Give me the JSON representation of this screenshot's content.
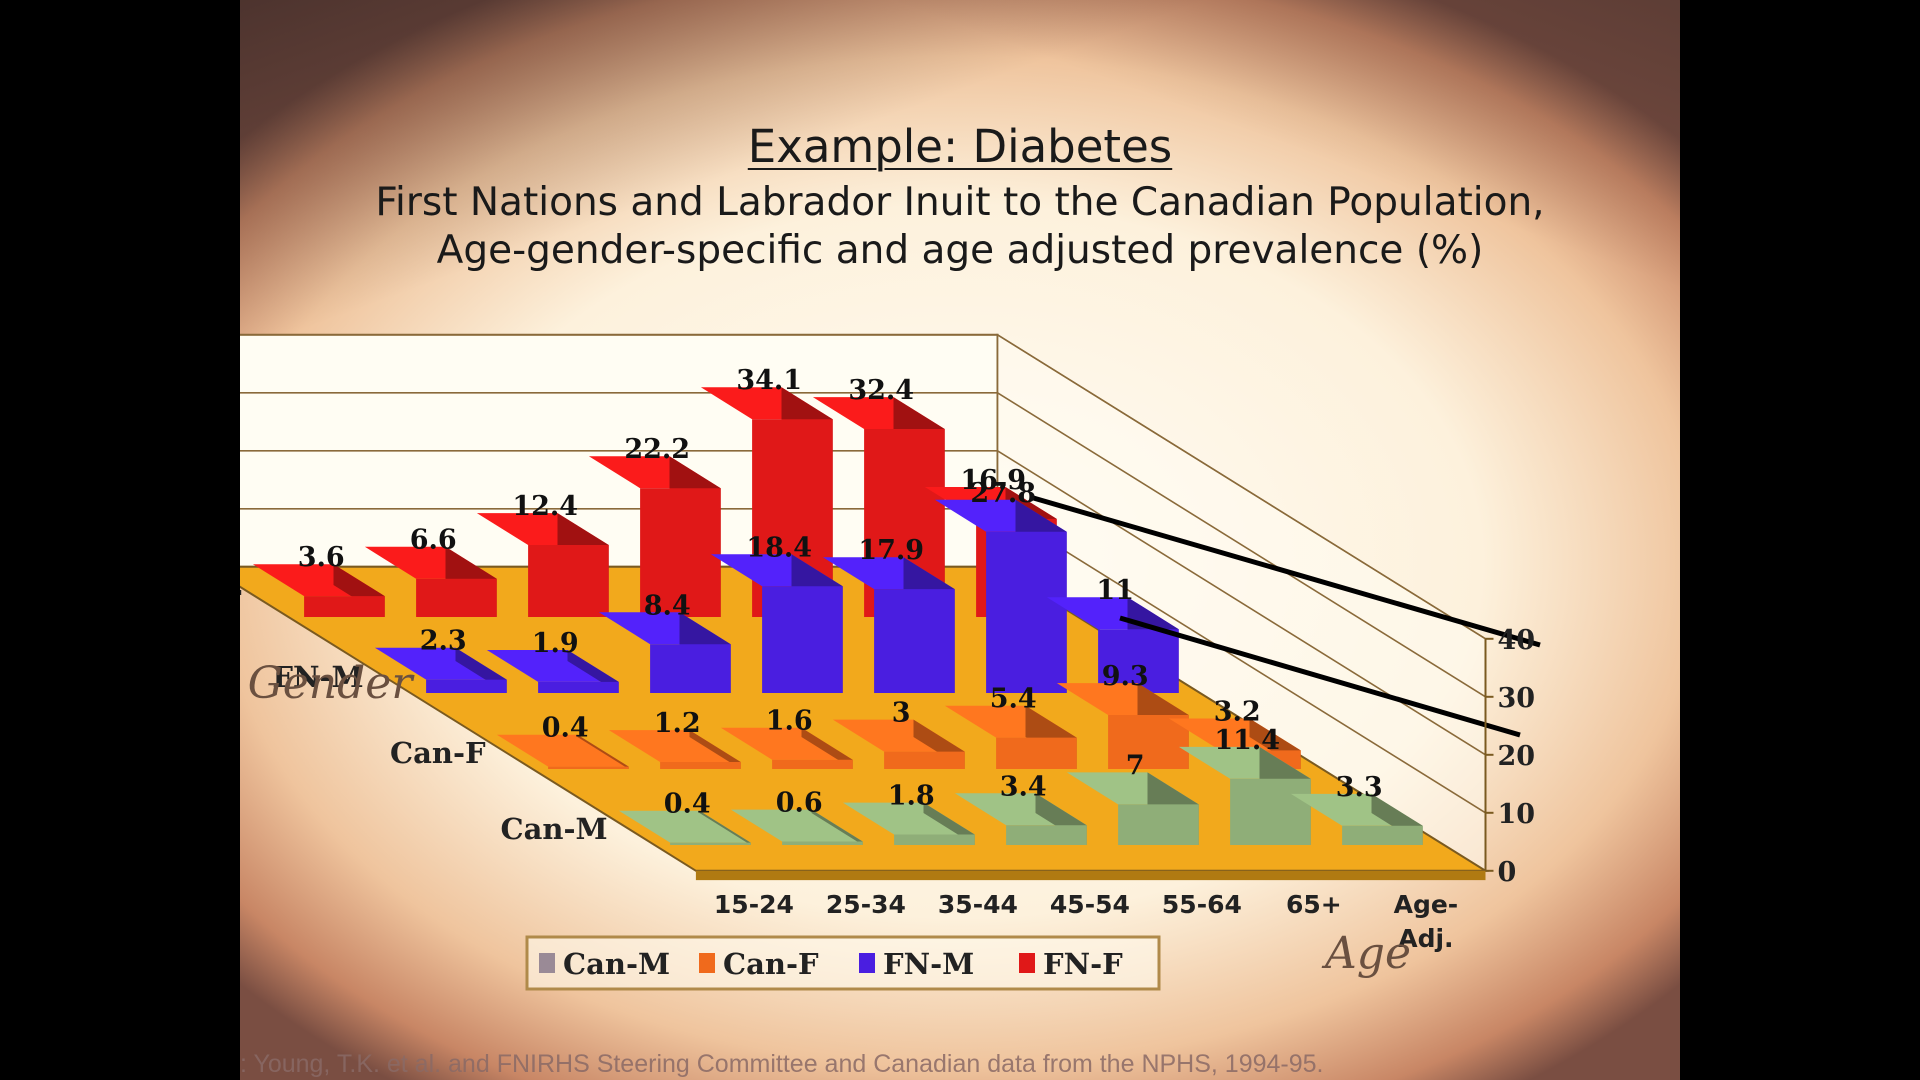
{
  "slide": {
    "title": "Example: Diabetes",
    "subtitle_line1": "First Nations and Labrador Inuit to the Canadian Population,",
    "subtitle_line2": "Age-gender-specific and age adjusted prevalence (%)",
    "source": ": Young, T.K. et al. and FNIRHS Steering Committee and  Canadian data from the NPHS, 1994-95."
  },
  "chart_data": {
    "type": "bar",
    "title": "Example: Diabetes",
    "subtitle": "First Nations and Labrador Inuit to the Canadian Population, Age-gender-specific and age adjusted prevalence (%)",
    "xlabel": "Age",
    "zlabel": "Gender",
    "categories": [
      "15-24",
      "25-34",
      "35-44",
      "45-54",
      "55-64",
      "65+",
      "Age-Adj."
    ],
    "ylim": [
      0,
      40
    ],
    "yticks": [
      0,
      10,
      20,
      30,
      40
    ],
    "grid": true,
    "legend_position": "bottom",
    "series": [
      {
        "name": "FN-F",
        "color": "#e01818",
        "values": [
          3.6,
          6.6,
          12.4,
          22.2,
          34.1,
          32.4,
          16.9
        ]
      },
      {
        "name": "FN-M",
        "color": "#4a1ee0",
        "values": [
          2.3,
          1.9,
          8.4,
          18.4,
          17.9,
          27.8,
          11
        ]
      },
      {
        "name": "Can-F",
        "color": "#f06a1c",
        "values": [
          0.4,
          1.2,
          1.6,
          3,
          5.4,
          9.3,
          3.2
        ]
      },
      {
        "name": "Can-M",
        "color": "#8fae78",
        "values": [
          0.4,
          0.6,
          1.8,
          3.4,
          7,
          11.4,
          3.3
        ]
      }
    ],
    "legend": [
      "Can-M",
      "Can-F",
      "FN-M",
      "FN-F"
    ],
    "legend_colors": [
      "#9a8a96",
      "#f06a1c",
      "#4a1ee0",
      "#e01818"
    ],
    "floor_color": "#f2a91c"
  }
}
